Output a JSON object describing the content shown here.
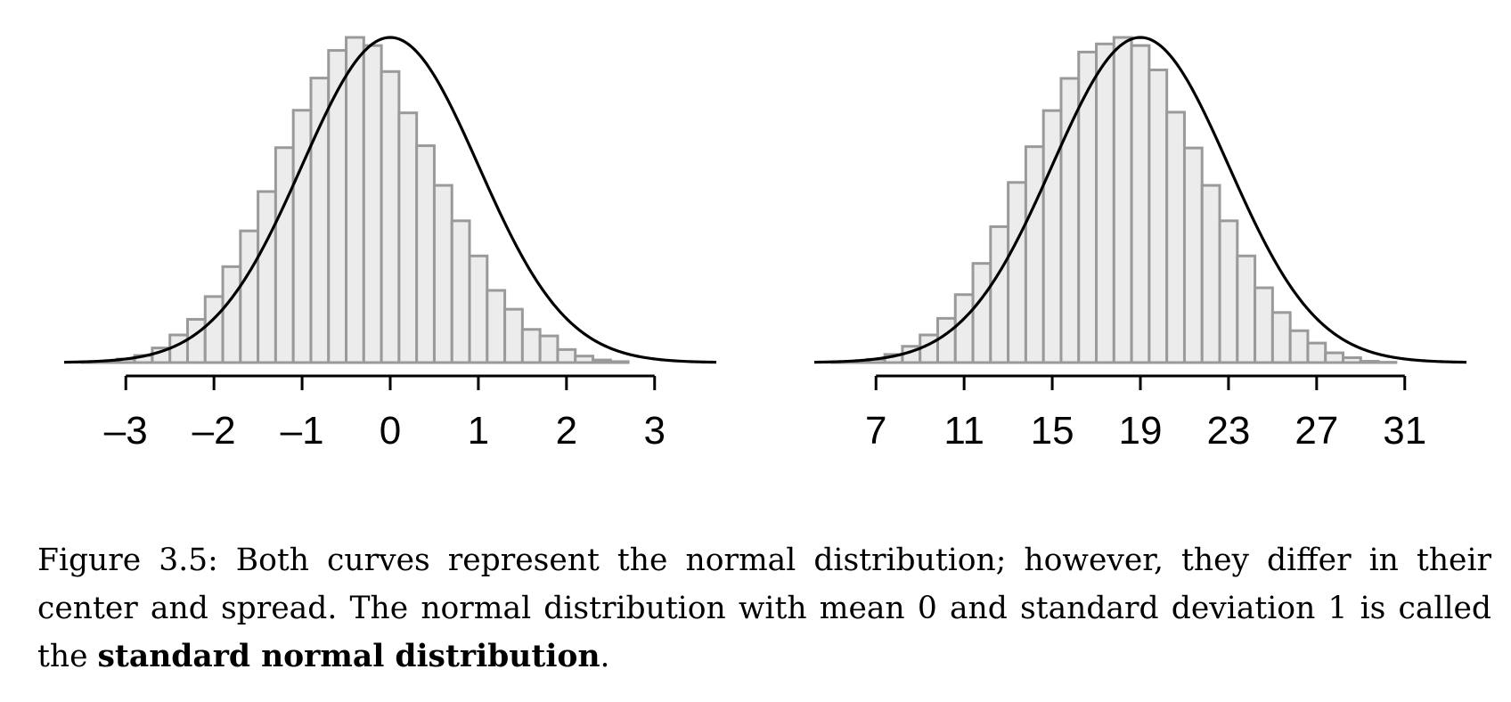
{
  "chart_data": [
    {
      "type": "bar",
      "overlay": "normal density curve",
      "title": "",
      "xlabel": "",
      "ylabel": "",
      "mean": 0,
      "sd": 1,
      "xlim": [
        -3.7,
        3.7
      ],
      "bin_width": 0.2,
      "ticks": [
        -3,
        -2,
        -1,
        0,
        1,
        2,
        3
      ],
      "tick_labels": [
        "–3",
        "–2",
        "–1",
        "0",
        "1",
        "2",
        "3"
      ],
      "bin_heights": [
        0.0,
        0.002,
        0.004,
        0.011,
        0.022,
        0.045,
        0.085,
        0.133,
        0.203,
        0.295,
        0.405,
        0.526,
        0.661,
        0.776,
        0.875,
        0.96,
        1.0,
        0.975,
        0.895,
        0.768,
        0.667,
        0.545,
        0.436,
        0.328,
        0.222,
        0.164,
        0.102,
        0.082,
        0.04,
        0.02,
        0.008,
        0.003,
        0.0,
        0.0,
        0.0,
        0.0
      ]
    },
    {
      "type": "bar",
      "overlay": "normal density curve",
      "title": "",
      "xlabel": "",
      "ylabel": "",
      "mean": 19,
      "sd": 4,
      "xlim": [
        4.2,
        33.8
      ],
      "bin_width": 0.8,
      "ticks": [
        7,
        11,
        15,
        19,
        23,
        27,
        31
      ],
      "tick_labels": [
        "7",
        "11",
        "15",
        "19",
        "23",
        "27",
        "31"
      ],
      "bin_heights": [
        0.0,
        0.002,
        0.004,
        0.01,
        0.025,
        0.05,
        0.085,
        0.136,
        0.209,
        0.305,
        0.418,
        0.554,
        0.664,
        0.775,
        0.874,
        0.955,
        0.98,
        1.0,
        0.975,
        0.9,
        0.77,
        0.66,
        0.545,
        0.436,
        0.328,
        0.23,
        0.154,
        0.098,
        0.06,
        0.03,
        0.015,
        0.004,
        0.001,
        0.0,
        0.0,
        0.0
      ]
    }
  ],
  "caption": {
    "figure_label": "Figure 3.5:",
    "text_1": "Both curves represent the normal distribution; however, they differ in their center and spread.  The normal distribution with mean 0 and standard deviation 1 is called the",
    "bold_term": "standard normal distribution",
    "end": "."
  },
  "colors": {
    "bar_fill": "#ececec",
    "bar_stroke": "#9a9a9a",
    "curve": "#000000",
    "axis": "#000000"
  }
}
